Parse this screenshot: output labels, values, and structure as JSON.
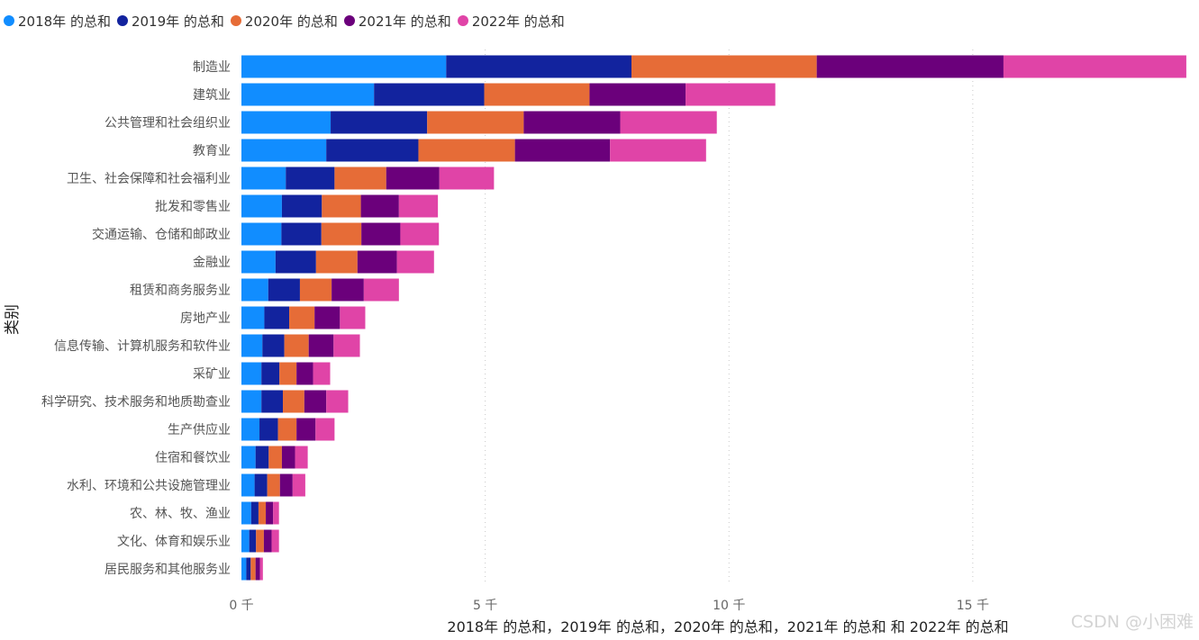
{
  "chart_data": {
    "type": "bar",
    "orientation": "horizontal",
    "stacked": true,
    "ylabel": "类别",
    "xlabel": "2018年 的总和，2019年 的总和，2020年 的总和，2021年 的总和 和 2022年 的总和",
    "xlim": [
      0,
      19400
    ],
    "xticks": [
      {
        "value": 0,
        "label": "0 千"
      },
      {
        "value": 5000,
        "label": "5 千"
      },
      {
        "value": 10000,
        "label": "10 千"
      },
      {
        "value": 15000,
        "label": "15 千"
      }
    ],
    "grid": true,
    "legend_position": "top-left",
    "categories": [
      "制造业",
      "建筑业",
      "公共管理和社会组织业",
      "教育业",
      "卫生、社会保障和社会福利业",
      "批发和零售业",
      "交通运输、仓储和邮政业",
      "金融业",
      "租赁和商务服务业",
      "房地产业",
      "信息传输、计算机服务和软件业",
      "采矿业",
      "科学研究、技术服务和地质勘查业",
      "生产供应业",
      "住宿和餐饮业",
      "水利、环境和公共设施管理业",
      "农、林、牧、渔业",
      "文化、体育和娱乐业",
      "居民服务和其他服务业"
    ],
    "series": [
      {
        "name": "2018年 的总和",
        "color": "#118dff",
        "values": [
          4200,
          2720,
          1830,
          1740,
          910,
          830,
          820,
          700,
          550,
          470,
          430,
          410,
          410,
          370,
          290,
          270,
          200,
          160,
          100
        ]
      },
      {
        "name": "2019年 的总和",
        "color": "#12239e",
        "values": [
          3800,
          2260,
          1980,
          1890,
          1000,
          820,
          820,
          830,
          650,
          510,
          450,
          370,
          440,
          380,
          270,
          260,
          150,
          140,
          90
        ]
      },
      {
        "name": "2020年 的总和",
        "color": "#e66c37",
        "values": [
          3800,
          2160,
          1980,
          1980,
          1060,
          800,
          820,
          850,
          650,
          520,
          500,
          350,
          440,
          380,
          270,
          260,
          150,
          160,
          100
        ]
      },
      {
        "name": "2021年 的总和",
        "color": "#6b007b",
        "values": [
          3830,
          1970,
          1980,
          1950,
          1090,
          780,
          800,
          810,
          660,
          520,
          510,
          340,
          450,
          390,
          270,
          260,
          150,
          160,
          90
        ]
      },
      {
        "name": "2022年 的总和",
        "color": "#e044a7",
        "values": [
          3750,
          1840,
          1980,
          1970,
          1120,
          800,
          790,
          760,
          720,
          520,
          540,
          350,
          450,
          390,
          260,
          260,
          120,
          150,
          60
        ]
      }
    ]
  },
  "watermark": "CSDN @小困难"
}
